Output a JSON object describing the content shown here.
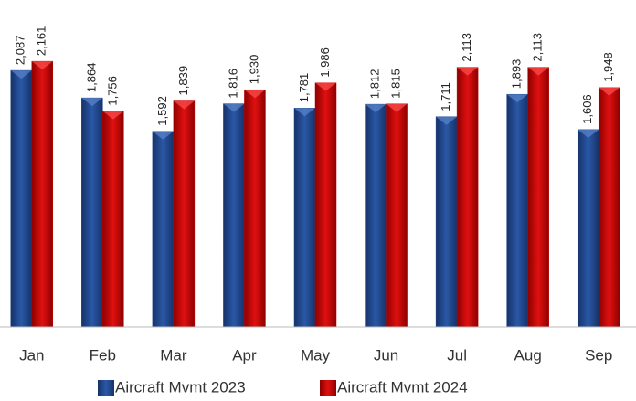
{
  "chart_data": {
    "type": "bar",
    "categories": [
      "Jan",
      "Feb",
      "Mar",
      "Apr",
      "May",
      "Jun",
      "Jul",
      "Aug",
      "Sep"
    ],
    "series": [
      {
        "name": "Aircraft Mvmt 2023",
        "color": "#1f4282",
        "values": [
          2087,
          1864,
          1592,
          1816,
          1781,
          1812,
          1711,
          1893,
          1606
        ],
        "value_labels": [
          "2,087",
          "1,864",
          "1,592",
          "1,816",
          "1,781",
          "1,812",
          "1,711",
          "1,893",
          "1,606"
        ]
      },
      {
        "name": "Aircraft Mvmt 2024",
        "color": "#c00000",
        "values": [
          2161,
          1756,
          1839,
          1930,
          1986,
          1815,
          2113,
          2113,
          1948
        ],
        "value_labels": [
          "2,161",
          "1,756",
          "1,839",
          "1,930",
          "1,986",
          "1,815",
          "2,113",
          "2,113",
          "1,948"
        ]
      }
    ],
    "ylim": [
      0,
      2500
    ],
    "legend": "bottom"
  }
}
